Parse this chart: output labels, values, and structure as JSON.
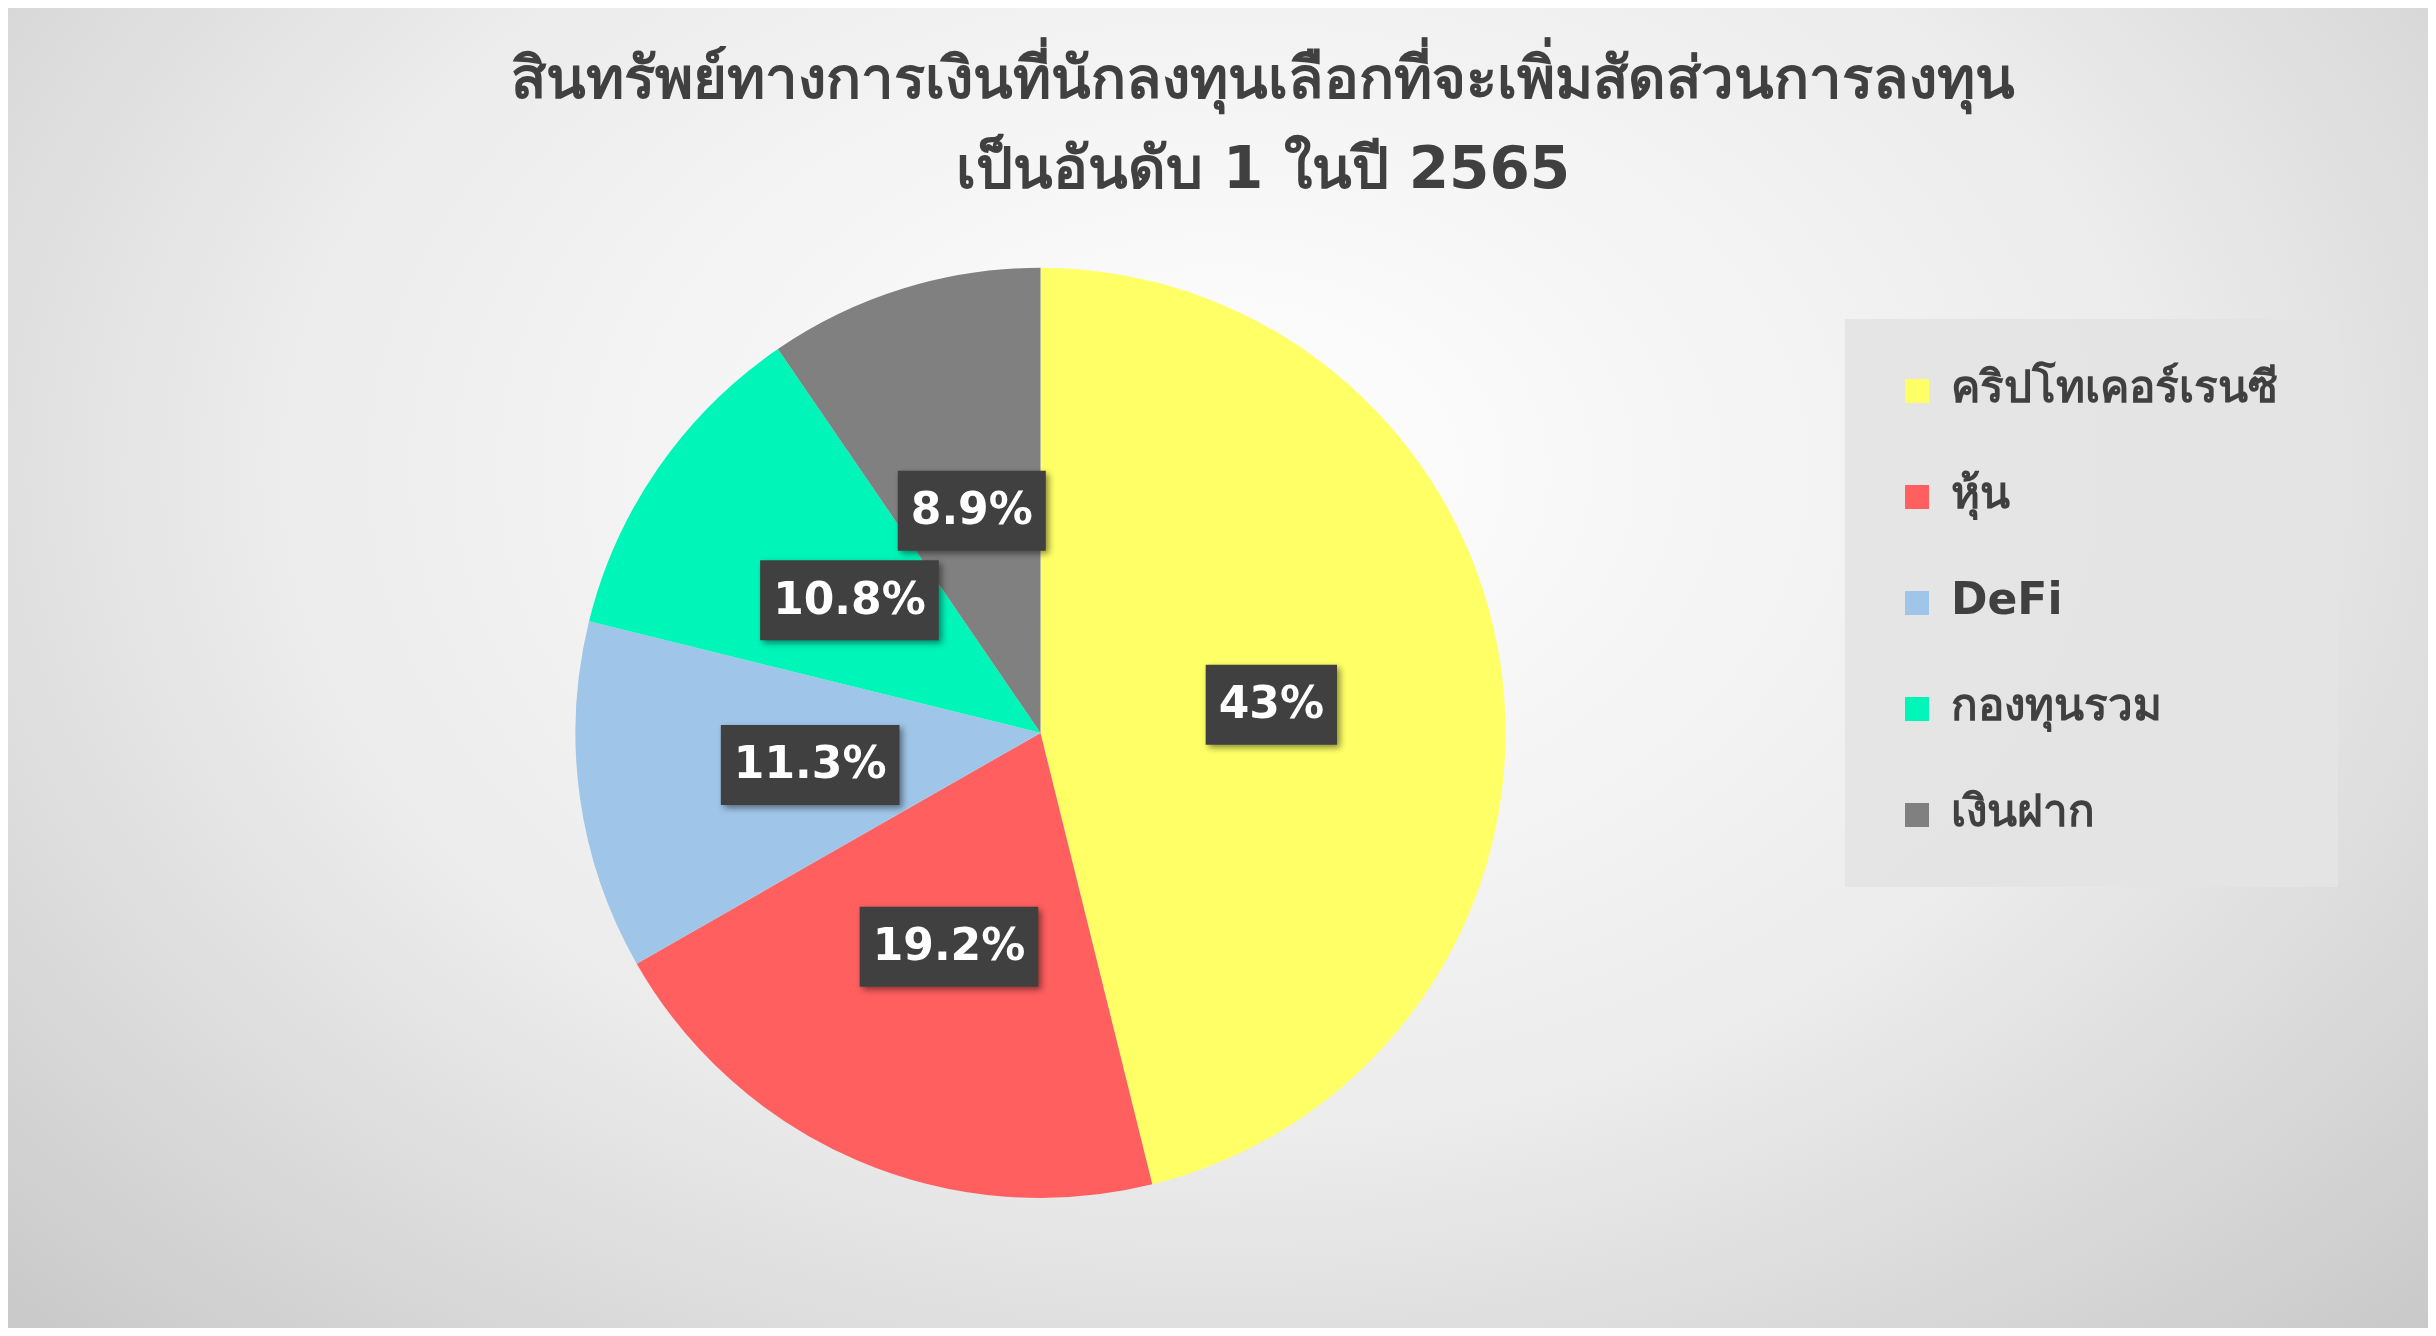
{
  "chart_data": {
    "type": "pie",
    "title": "สินทรัพย์ทางการเงินที่นักลงทุนเลือกที่จะเพิ่มสัดส่วนการลงทุน\nเป็นอันดับ 1 ในปี 2565",
    "categories": [
      "คริปโทเคอร์เรนซี",
      "หุ้น",
      "DeFi",
      "กองทุนรวม",
      "เงินฝาก"
    ],
    "values": [
      43,
      19.2,
      11.3,
      10.8,
      8.9
    ],
    "colors": [
      "#ffff66",
      "#ff5f5f",
      "#9fc5e8",
      "#00f5b8",
      "#808080"
    ],
    "value_labels": [
      "43%",
      "19.2%",
      "11.3%",
      "10.8%",
      "8.9%"
    ],
    "legend": "right"
  }
}
